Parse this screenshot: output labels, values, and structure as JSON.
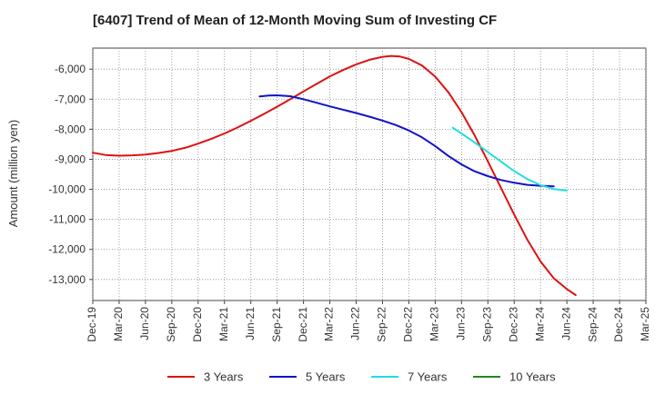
{
  "chart_data": {
    "type": "line",
    "title": "[6407]  Trend of Mean of 12-Month Moving Sum of Investing CF",
    "xlabel": "",
    "ylabel": "Amount (million yen)",
    "ylim": [
      -13700,
      -5300
    ],
    "y_ticks": [
      -6000,
      -7000,
      -8000,
      -9000,
      -10000,
      -11000,
      -12000,
      -13000
    ],
    "y_tick_labels": [
      "-6,000",
      "-7,000",
      "-8,000",
      "-9,000",
      "-10,000",
      "-11,000",
      "-12,000",
      "-13,000"
    ],
    "x_tick_labels": [
      "Dec-19",
      "Mar-20",
      "Jun-20",
      "Sep-20",
      "Dec-20",
      "Mar-21",
      "Jun-21",
      "Sep-21",
      "Dec-21",
      "Mar-22",
      "Jun-22",
      "Sep-22",
      "Dec-22",
      "Mar-23",
      "Jun-23",
      "Sep-23",
      "Dec-23",
      "Mar-24",
      "Jun-24",
      "Sep-24",
      "Dec-24",
      "Mar-25"
    ],
    "grid": true,
    "legend_position": "bottom",
    "series": [
      {
        "name": "3 Years",
        "color": "#dd1111",
        "points": [
          [
            0,
            -8780
          ],
          [
            0.5,
            -8860
          ],
          [
            1,
            -8880
          ],
          [
            1.5,
            -8870
          ],
          [
            2,
            -8840
          ],
          [
            2.5,
            -8790
          ],
          [
            3,
            -8720
          ],
          [
            3.5,
            -8620
          ],
          [
            4,
            -8480
          ],
          [
            4.5,
            -8320
          ],
          [
            5,
            -8140
          ],
          [
            5.5,
            -7940
          ],
          [
            6,
            -7720
          ],
          [
            6.5,
            -7490
          ],
          [
            7,
            -7250
          ],
          [
            7.5,
            -7000
          ],
          [
            8,
            -6740
          ],
          [
            8.5,
            -6490
          ],
          [
            9,
            -6240
          ],
          [
            9.5,
            -6030
          ],
          [
            10,
            -5840
          ],
          [
            10.5,
            -5690
          ],
          [
            11,
            -5590
          ],
          [
            11.333,
            -5560
          ],
          [
            11.667,
            -5580
          ],
          [
            12,
            -5660
          ],
          [
            12.5,
            -5880
          ],
          [
            13,
            -6250
          ],
          [
            13.5,
            -6770
          ],
          [
            14,
            -7430
          ],
          [
            14.5,
            -8210
          ],
          [
            15,
            -9070
          ],
          [
            15.5,
            -9960
          ],
          [
            16,
            -10840
          ],
          [
            16.5,
            -11680
          ],
          [
            17,
            -12400
          ],
          [
            17.5,
            -12960
          ],
          [
            18,
            -13320
          ],
          [
            18.333,
            -13520
          ]
        ]
      },
      {
        "name": "5 Years",
        "color": "#1111cc",
        "points": [
          [
            6.333,
            -6910
          ],
          [
            6.667,
            -6880
          ],
          [
            7,
            -6870
          ],
          [
            7.5,
            -6900
          ],
          [
            8,
            -7000
          ],
          [
            8.5,
            -7120
          ],
          [
            9,
            -7240
          ],
          [
            9.5,
            -7350
          ],
          [
            10,
            -7460
          ],
          [
            10.5,
            -7580
          ],
          [
            11,
            -7710
          ],
          [
            11.5,
            -7860
          ],
          [
            12,
            -8040
          ],
          [
            12.5,
            -8270
          ],
          [
            13,
            -8560
          ],
          [
            13.5,
            -8890
          ],
          [
            14,
            -9170
          ],
          [
            14.5,
            -9400
          ],
          [
            15,
            -9560
          ],
          [
            15.5,
            -9690
          ],
          [
            16,
            -9780
          ],
          [
            16.5,
            -9850
          ],
          [
            17,
            -9880
          ],
          [
            17.5,
            -9900
          ]
        ]
      },
      {
        "name": "7 Years",
        "color": "#22dddd",
        "points": [
          [
            13.667,
            -7950
          ],
          [
            14,
            -8140
          ],
          [
            14.5,
            -8440
          ],
          [
            15,
            -8760
          ],
          [
            15.5,
            -9080
          ],
          [
            16,
            -9390
          ],
          [
            16.5,
            -9660
          ],
          [
            17,
            -9860
          ],
          [
            17.5,
            -9990
          ],
          [
            18,
            -10040
          ]
        ]
      },
      {
        "name": "10 Years",
        "color": "#228822",
        "points": []
      }
    ]
  }
}
